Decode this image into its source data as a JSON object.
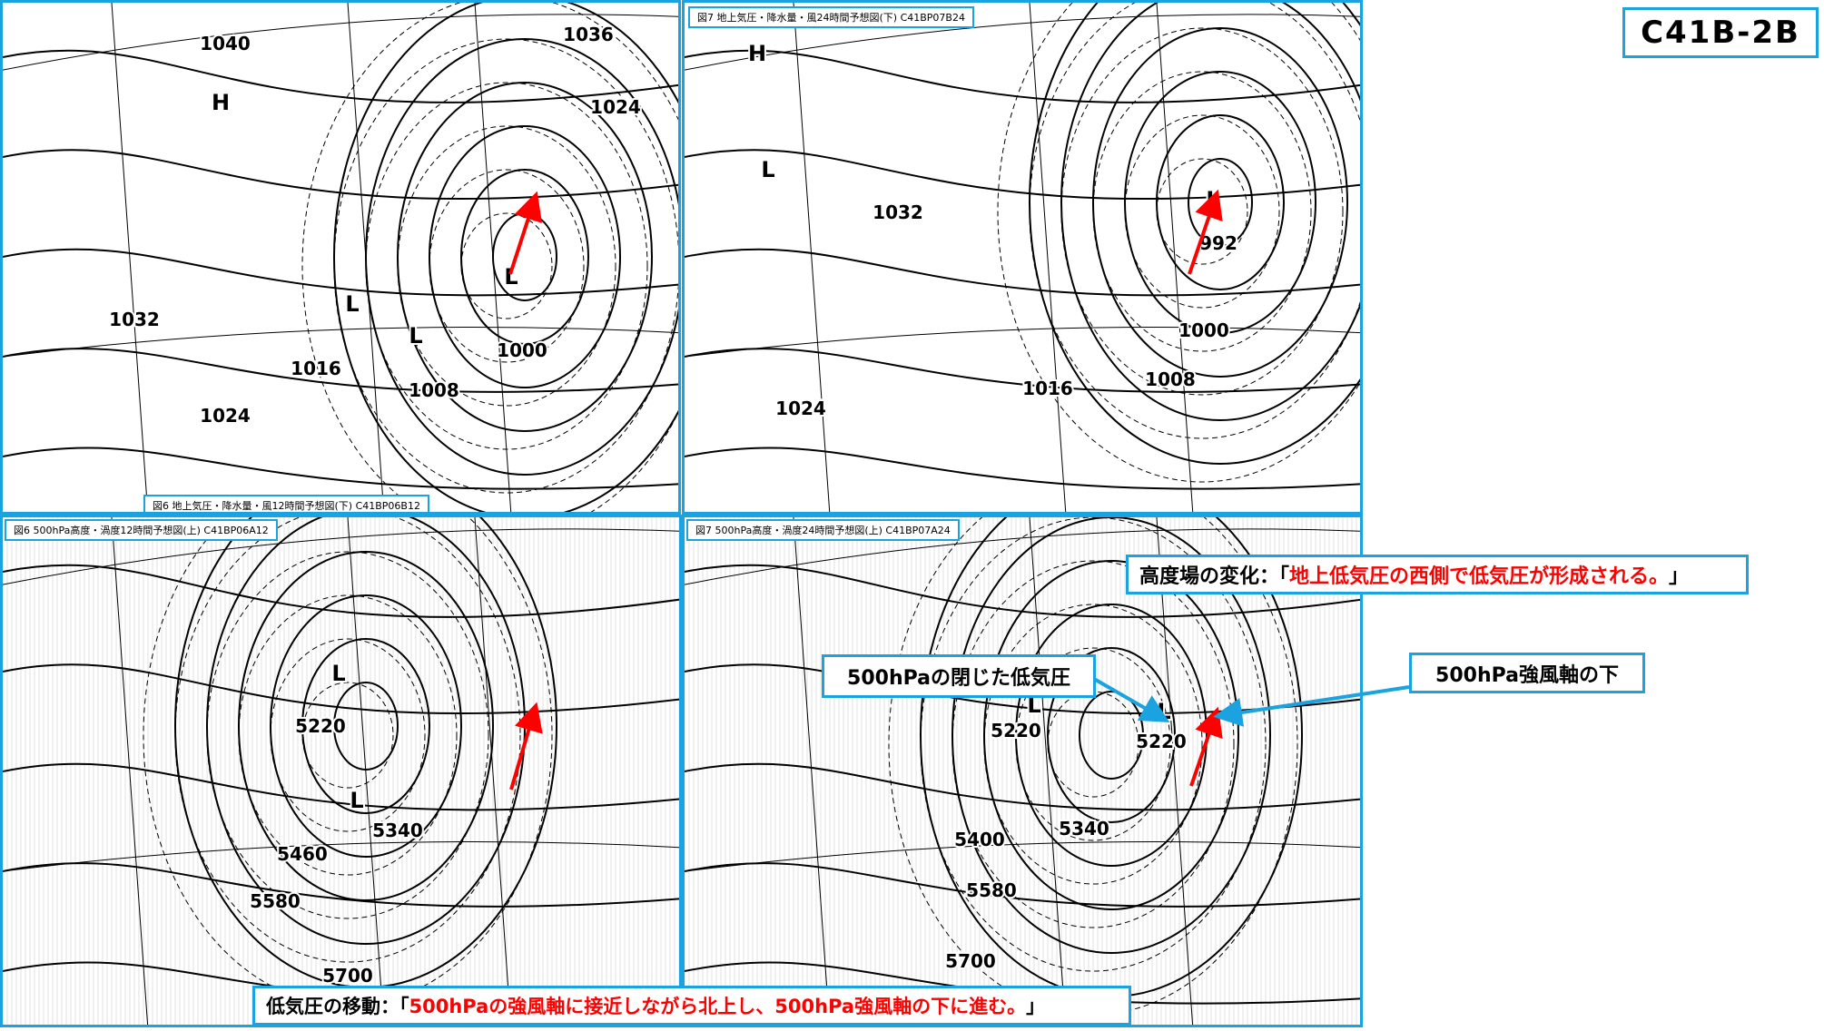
{
  "doc_tag": "C41B-2B",
  "panels": {
    "top_left": {
      "caption": "図6 地上気圧・降水量・風12時間予想図(下) C41BP06B12",
      "labels": [
        [
          "1040",
          245,
          52
        ],
        [
          "1036",
          645,
          42
        ],
        [
          "1024",
          675,
          122
        ],
        [
          "1032",
          145,
          356
        ],
        [
          "1016",
          345,
          410
        ],
        [
          "1008",
          475,
          434
        ],
        [
          "1000",
          572,
          390
        ],
        [
          "1024",
          245,
          462
        ],
        [
          "L",
          560,
          310
        ],
        [
          "H",
          240,
          118
        ],
        [
          "L",
          385,
          340
        ],
        [
          "L",
          455,
          375
        ]
      ]
    },
    "top_right": {
      "caption": "図7 地上気圧・降水量・風24時間予想図(下) C41BP07B24",
      "labels": [
        [
          "1032",
          235,
          238
        ],
        [
          "1024",
          128,
          454
        ],
        [
          "1016",
          400,
          432
        ],
        [
          "1008",
          535,
          422
        ],
        [
          "992",
          588,
          272
        ],
        [
          "1000",
          572,
          368
        ],
        [
          "L",
          582,
          225
        ],
        [
          "H",
          80,
          64
        ],
        [
          "L",
          92,
          192
        ]
      ]
    },
    "bottom_left": {
      "caption": "図6 500hPa高度・渦度12時間予想図(上) C41BP06A12",
      "labels": [
        [
          "5220",
          350,
          237
        ],
        [
          "5340",
          435,
          352
        ],
        [
          "5460",
          330,
          378
        ],
        [
          "5580",
          300,
          430
        ],
        [
          "5700",
          380,
          512
        ],
        [
          "L",
          370,
          180
        ],
        [
          "L",
          390,
          320
        ]
      ]
    },
    "bottom_right": {
      "caption": "図7 500hPa高度・渦度24時間予想図(上) C41BP07A24",
      "labels": [
        [
          "5220",
          365,
          242
        ],
        [
          "5220",
          525,
          254
        ],
        [
          "5340",
          440,
          350
        ],
        [
          "5400",
          325,
          362
        ],
        [
          "5580",
          338,
          418
        ],
        [
          "5700",
          315,
          496
        ],
        [
          "L",
          385,
          215
        ],
        [
          "L",
          528,
          222
        ]
      ]
    }
  },
  "annotations": {
    "height_change_label": "高度場の変化：「",
    "height_change_text": "地上低気圧の西側で低気圧が形成される。",
    "height_change_close": "」",
    "closed_low": "500hPaの閉じた低気圧",
    "jet_axis": "500hPa強風軸の下",
    "movement_label": "低気圧の移動：「",
    "movement_text": "500hPaの強風軸に接近しながら北上し、500hPa強風軸の下に進む。",
    "movement_close": "」"
  },
  "colors": {
    "frame": "#1aa3e0",
    "arrow": "#ff0000",
    "highlight_text": "#ff0000"
  }
}
